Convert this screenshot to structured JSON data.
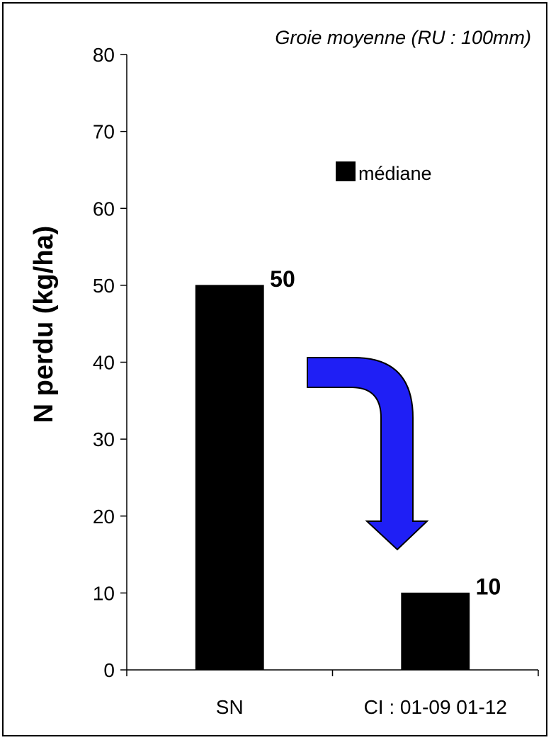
{
  "chart_data": {
    "type": "bar",
    "title": "Groie moyenne (RU : 100mm)",
    "ylabel": "N perdu (kg/ha)",
    "xlabel": "",
    "categories": [
      "SN",
      "CI : 01-09 01-12"
    ],
    "series": [
      {
        "name": "médiane",
        "values": [
          50,
          10
        ],
        "color": "#000000"
      }
    ],
    "data_labels": [
      "50",
      "10"
    ],
    "ylim": [
      0,
      80
    ],
    "yticks": [
      "0",
      "10",
      "20",
      "30",
      "40",
      "50",
      "60",
      "70",
      "80"
    ],
    "grid": false,
    "legend_position": "top-right",
    "annotation": {
      "shape": "curved-arrow-down",
      "color": "#1f1ff5",
      "from_category": "SN",
      "to_category": "CI : 01-09 01-12"
    }
  }
}
